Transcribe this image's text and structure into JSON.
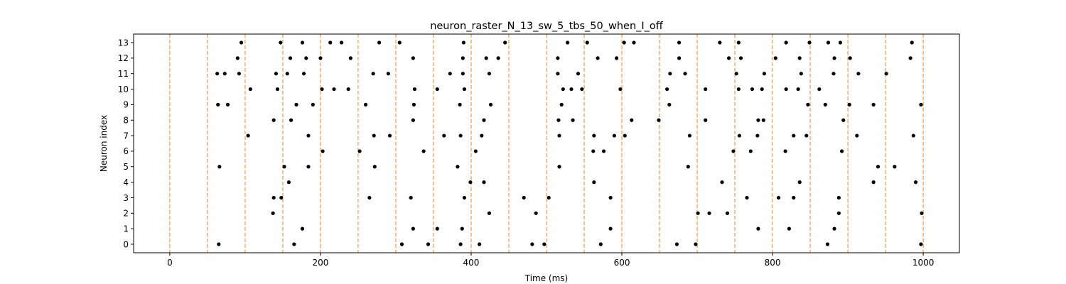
{
  "chart_data": {
    "type": "scatter",
    "title": "neuron_raster_N_13_sw_5_tbs_50_when_I_off",
    "xlabel": "Time (ms)",
    "ylabel": "Neuron index",
    "xlim": [
      -48,
      1048
    ],
    "ylim": [
      -0.55,
      13.55
    ],
    "x_ticks": [
      0,
      200,
      400,
      600,
      800,
      1000
    ],
    "y_ticks": [
      0,
      1,
      2,
      3,
      4,
      5,
      6,
      7,
      8,
      9,
      10,
      11,
      12,
      13
    ],
    "grid": false,
    "legend": "none",
    "colors": {
      "spike": "#000000",
      "bin_line": "#ff7f0e",
      "axis": "#000000"
    },
    "bin_lines": [
      0,
      50,
      100,
      150,
      200,
      250,
      300,
      350,
      400,
      450,
      500,
      550,
      600,
      650,
      700,
      750,
      800,
      850,
      900,
      950,
      1000
    ],
    "spikes": [
      {
        "neuron": 0,
        "times": [
          65,
          165,
          308,
          343,
          386,
          411,
          481,
          497,
          572,
          673,
          698,
          873,
          997
        ]
      },
      {
        "neuron": 1,
        "times": [
          176,
          323,
          355,
          388,
          585,
          781,
          822,
          882
        ]
      },
      {
        "neuron": 2,
        "times": [
          137,
          424,
          486,
          701,
          716,
          740,
          888,
          998
        ]
      },
      {
        "neuron": 3,
        "times": [
          138,
          148,
          265,
          320,
          391,
          470,
          503,
          585,
          766,
          808,
          828,
          888
        ]
      },
      {
        "neuron": 4,
        "times": [
          158,
          399,
          417,
          563,
          733,
          836,
          934,
          990
        ]
      },
      {
        "neuron": 5,
        "times": [
          66,
          152,
          184,
          272,
          382,
          517,
          688,
          940,
          962
        ]
      },
      {
        "neuron": 6,
        "times": [
          203,
          252,
          337,
          406,
          562,
          576,
          748,
          771,
          817,
          892
        ]
      },
      {
        "neuron": 7,
        "times": [
          104,
          184,
          271,
          292,
          364,
          386,
          414,
          517,
          563,
          590,
          604,
          690,
          756,
          780,
          828,
          845,
          912,
          987
        ]
      },
      {
        "neuron": 8,
        "times": [
          138,
          161,
          323,
          417,
          516,
          535,
          613,
          649,
          711,
          781,
          788,
          894
        ]
      },
      {
        "neuron": 9,
        "times": [
          64,
          77,
          168,
          190,
          260,
          324,
          385,
          426,
          520,
          663,
          847,
          870,
          902,
          934,
          997
        ]
      },
      {
        "neuron": 10,
        "times": [
          107,
          143,
          202,
          218,
          237,
          325,
          355,
          391,
          522,
          533,
          547,
          598,
          660,
          711,
          755,
          773,
          786,
          818,
          834,
          862
        ]
      },
      {
        "neuron": 11,
        "times": [
          63,
          73,
          92,
          141,
          156,
          178,
          270,
          290,
          372,
          389,
          424,
          515,
          542,
          664,
          684,
          752,
          789,
          838,
          881,
          914,
          951
        ]
      },
      {
        "neuron": 12,
        "times": [
          90,
          160,
          181,
          200,
          240,
          323,
          389,
          420,
          436,
          515,
          568,
          593,
          676,
          742,
          758,
          804,
          836,
          882,
          903,
          983
        ]
      },
      {
        "neuron": 13,
        "times": [
          95,
          147,
          176,
          213,
          228,
          278,
          305,
          390,
          445,
          528,
          554,
          603,
          616,
          676,
          730,
          755,
          818,
          849,
          874,
          890,
          985
        ]
      }
    ]
  }
}
